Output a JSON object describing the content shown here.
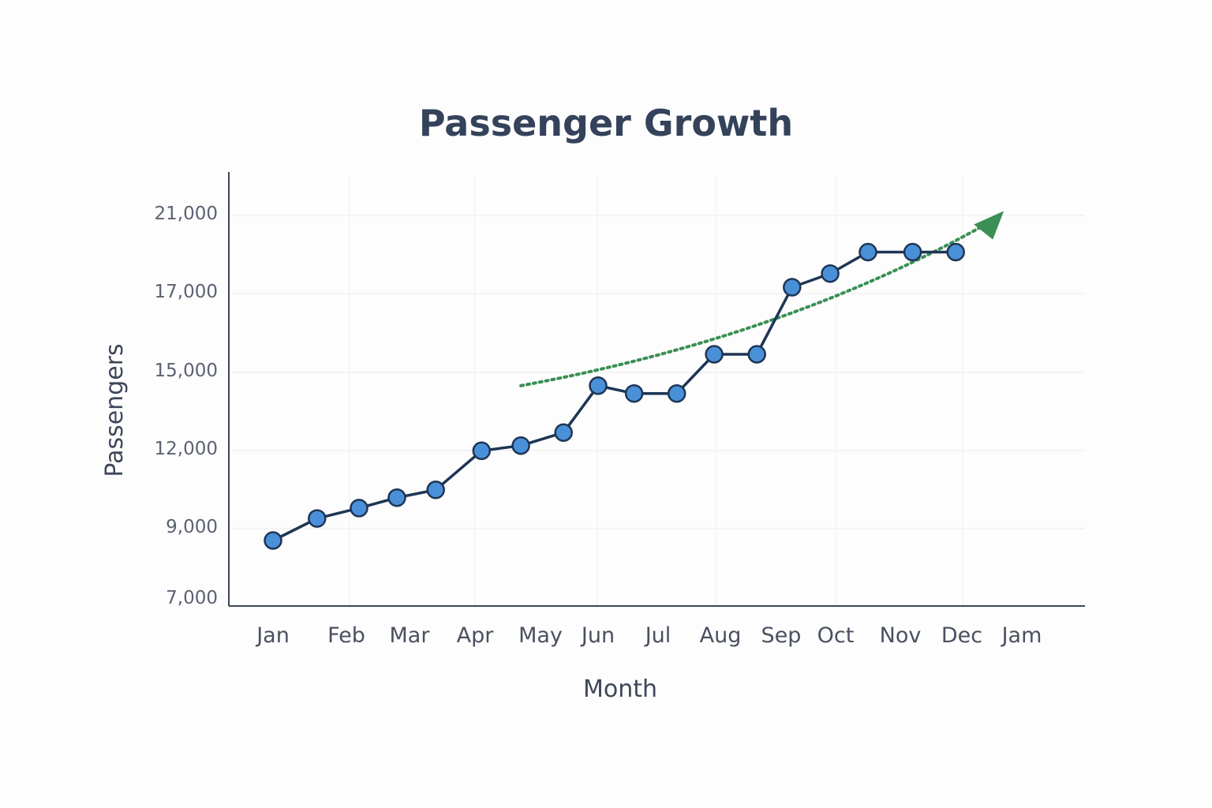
{
  "chart_data": {
    "type": "line",
    "title": "Passenger Growth",
    "xlabel": "Month",
    "ylabel": "Passengers",
    "categories": [
      "Jan",
      "Feb",
      "Mar",
      "Apr",
      "May",
      "Jun",
      "Jul",
      "Aug",
      "Sep",
      "Oct",
      "Nov",
      "Dec",
      "Jam"
    ],
    "y_ticks": [
      "7,000",
      "9,000",
      "12,000",
      "15,000",
      "17,000",
      "21,000"
    ],
    "grid": true,
    "series": [
      {
        "name": "Passengers",
        "x": [
          0.0,
          0.6,
          1.2,
          1.8,
          2.4,
          3.1,
          3.7,
          4.4,
          5.0,
          5.6,
          6.3,
          6.9,
          7.6,
          8.2,
          8.9,
          9.5,
          10.2,
          10.9
        ],
        "values": [
          8600,
          9300,
          9700,
          10100,
          10400,
          11900,
          12100,
          12600,
          14400,
          14100,
          14100,
          15400,
          15400,
          17200,
          17900,
          19000,
          19000,
          19000
        ],
        "color": "#4a90d9",
        "line_color": "#1e3555"
      }
    ],
    "trend_arrow": {
      "from": {
        "x": 3.7,
        "y": 14400
      },
      "to": {
        "x": 11.7,
        "y": 21100
      },
      "color": "#3a8f55",
      "style": "dotted"
    }
  }
}
